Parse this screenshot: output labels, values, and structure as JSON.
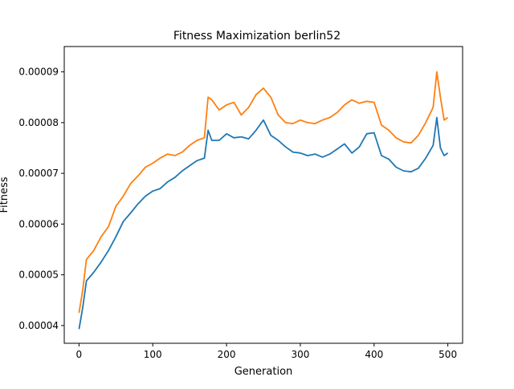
{
  "chart_data": {
    "type": "line",
    "title": "Fitness Maximization berlin52",
    "xlabel": "Generation",
    "ylabel": "Fitness",
    "xlim": [
      -20,
      520
    ],
    "ylim": [
      3.65e-05,
      9.5e-05
    ],
    "xticks": [
      0,
      100,
      200,
      300,
      400,
      500
    ],
    "xtick_labels": [
      "0",
      "100",
      "200",
      "300",
      "400",
      "500"
    ],
    "yticks": [
      4e-05,
      5e-05,
      6e-05,
      7e-05,
      8e-05,
      9e-05
    ],
    "ytick_labels": [
      "0.00004",
      "0.00005",
      "0.00006",
      "0.00007",
      "0.00008",
      "0.00009"
    ],
    "grid": false,
    "legend": "none",
    "series": [
      {
        "color": "#1f77b4",
        "x": [
          0,
          5,
          10,
          20,
          30,
          40,
          50,
          60,
          70,
          80,
          90,
          100,
          110,
          120,
          130,
          140,
          150,
          160,
          170,
          175,
          180,
          190,
          200,
          210,
          220,
          230,
          240,
          250,
          260,
          270,
          280,
          290,
          300,
          310,
          320,
          330,
          340,
          350,
          360,
          370,
          380,
          390,
          400,
          410,
          420,
          430,
          440,
          450,
          460,
          470,
          480,
          485,
          490,
          495,
          500
        ],
        "y": [
          3.93e-05,
          4.35e-05,
          4.88e-05,
          5.05e-05,
          5.25e-05,
          5.48e-05,
          5.75e-05,
          6.05e-05,
          6.22e-05,
          6.4e-05,
          6.55e-05,
          6.65e-05,
          6.7e-05,
          6.83e-05,
          6.92e-05,
          7.05e-05,
          7.15e-05,
          7.25e-05,
          7.3e-05,
          7.85e-05,
          7.65e-05,
          7.65e-05,
          7.78e-05,
          7.7e-05,
          7.72e-05,
          7.68e-05,
          7.85e-05,
          8.05e-05,
          7.75e-05,
          7.65e-05,
          7.52e-05,
          7.42e-05,
          7.4e-05,
          7.35e-05,
          7.38e-05,
          7.32e-05,
          7.38e-05,
          7.48e-05,
          7.58e-05,
          7.4e-05,
          7.52e-05,
          7.78e-05,
          7.8e-05,
          7.35e-05,
          7.28e-05,
          7.12e-05,
          7.05e-05,
          7.03e-05,
          7.1e-05,
          7.3e-05,
          7.55e-05,
          8.1e-05,
          7.5e-05,
          7.35e-05,
          7.4e-05
        ]
      },
      {
        "color": "#ff7f0e",
        "x": [
          0,
          5,
          10,
          20,
          30,
          40,
          50,
          60,
          70,
          80,
          90,
          100,
          110,
          120,
          130,
          140,
          150,
          160,
          170,
          175,
          180,
          190,
          200,
          210,
          220,
          230,
          240,
          250,
          260,
          270,
          280,
          290,
          300,
          310,
          320,
          330,
          340,
          350,
          360,
          370,
          380,
          390,
          400,
          410,
          420,
          430,
          440,
          450,
          460,
          470,
          480,
          485,
          490,
          495,
          500
        ],
        "y": [
          4.25e-05,
          4.7e-05,
          5.3e-05,
          5.48e-05,
          5.75e-05,
          5.95e-05,
          6.35e-05,
          6.55e-05,
          6.8e-05,
          6.95e-05,
          7.12e-05,
          7.2e-05,
          7.3e-05,
          7.38e-05,
          7.35e-05,
          7.42e-05,
          7.55e-05,
          7.65e-05,
          7.7e-05,
          8.5e-05,
          8.45e-05,
          8.25e-05,
          8.35e-05,
          8.4e-05,
          8.15e-05,
          8.3e-05,
          8.55e-05,
          8.68e-05,
          8.5e-05,
          8.15e-05,
          8e-05,
          7.98e-05,
          8.05e-05,
          8e-05,
          7.98e-05,
          8.05e-05,
          8.1e-05,
          8.2e-05,
          8.35e-05,
          8.45e-05,
          8.38e-05,
          8.42e-05,
          8.4e-05,
          7.95e-05,
          7.85e-05,
          7.7e-05,
          7.62e-05,
          7.6e-05,
          7.75e-05,
          8e-05,
          8.3e-05,
          9e-05,
          8.5e-05,
          8.05e-05,
          8.1e-05
        ]
      }
    ]
  }
}
